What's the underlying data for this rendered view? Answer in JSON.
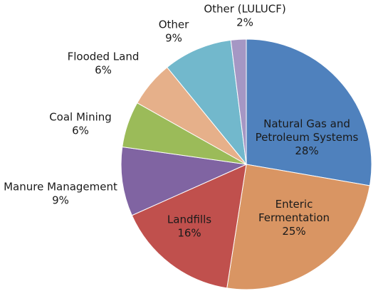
{
  "chart_data": {
    "type": "pie",
    "title": "",
    "start_angle_deg": 0,
    "direction": "clockwise",
    "slices": [
      {
        "label": "Natural Gas and Petroleum Systems",
        "label_lines": [
          "Natural Gas and",
          "Petroleum Systems"
        ],
        "pct_label": "28%",
        "value": 28,
        "color": "#4f81bd",
        "label_position": "inside"
      },
      {
        "label": "Enteric Fermentation",
        "label_lines": [
          "Enteric",
          "Fermentation"
        ],
        "pct_label": "25%",
        "value": 25,
        "color": "#d99563",
        "label_position": "inside"
      },
      {
        "label": "Landfills",
        "label_lines": [
          "Landfills"
        ],
        "pct_label": "16%",
        "value": 16,
        "color": "#c0504d",
        "label_position": "inside"
      },
      {
        "label": "Manure Management",
        "label_lines": [
          "Manure Management"
        ],
        "pct_label": "9%",
        "value": 9,
        "color": "#8064a2",
        "label_position": "outside"
      },
      {
        "label": "Coal Mining",
        "label_lines": [
          "Coal Mining"
        ],
        "pct_label": "6%",
        "value": 6,
        "color": "#9bbb59",
        "label_position": "outside"
      },
      {
        "label": "Flooded Land",
        "label_lines": [
          "Flooded Land"
        ],
        "pct_label": "6%",
        "value": 6,
        "color": "#e6b08a",
        "label_position": "outside"
      },
      {
        "label": "Other",
        "label_lines": [
          "Other"
        ],
        "pct_label": "9%",
        "value": 9,
        "color": "#72b8cc",
        "label_position": "outside"
      },
      {
        "label": "Other (LULUCF)",
        "label_lines": [
          "Other (LULUCF)"
        ],
        "pct_label": "2%",
        "value": 2,
        "color": "#a597c4",
        "label_position": "outside"
      }
    ]
  }
}
